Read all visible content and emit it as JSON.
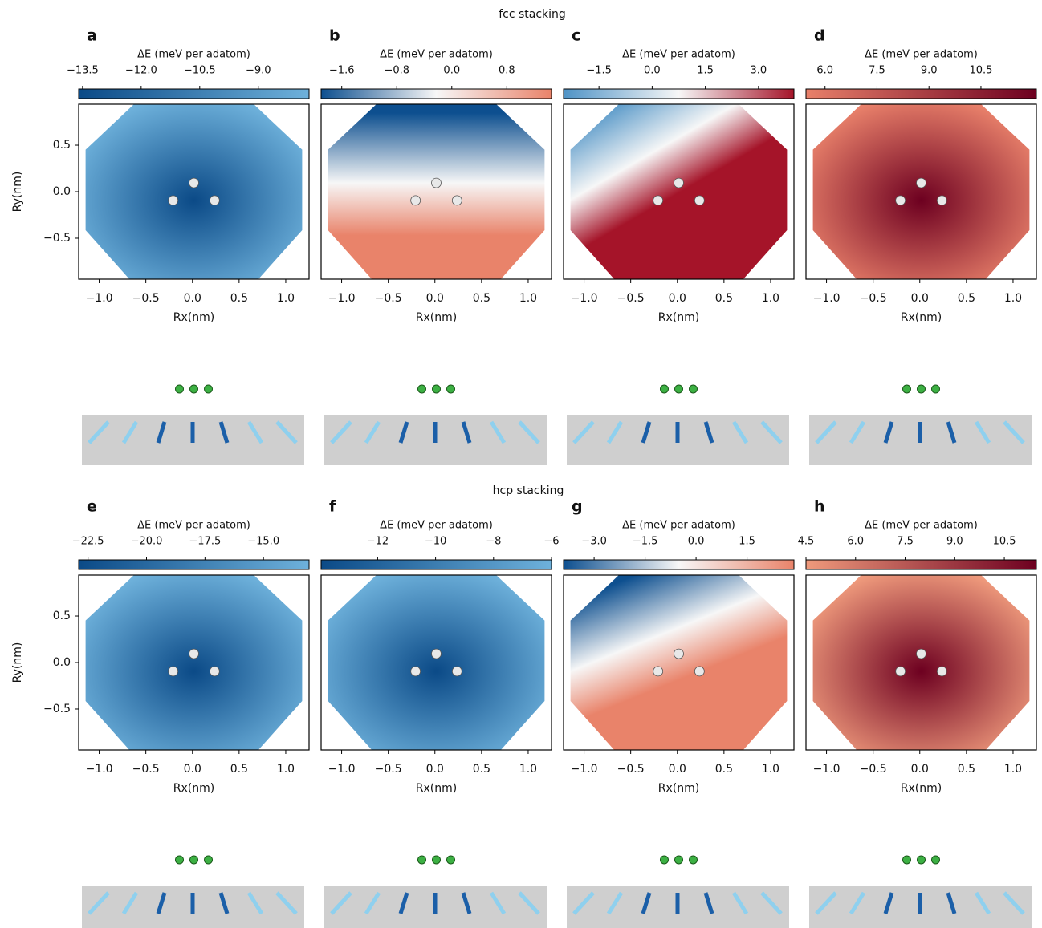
{
  "section_titles": [
    "fcc stacking",
    "hcp stacking"
  ],
  "chart_data": [
    {
      "type": "heatmap",
      "label": "a",
      "colorbar_label": "ΔE (meV per adatom)",
      "clim": [
        -13.6,
        -7.7
      ],
      "colors": [
        "#0b4a87",
        "#6eb1db"
      ],
      "cticks": [
        {
          "value": -13.5,
          "label": "−13.5"
        },
        {
          "value": -12.0,
          "label": "−12.0"
        },
        {
          "value": -10.5,
          "label": "−10.5"
        },
        {
          "value": -9.0,
          "label": "−9.0"
        }
      ],
      "xlabel": "Rx(nm)",
      "ylabel": "Ry(nm)",
      "xlim": [
        -1.22,
        1.25
      ],
      "ylim": [
        -0.94,
        0.94
      ],
      "xticks": [
        {
          "value": -1,
          "label": "−1.0"
        },
        {
          "value": -0.5,
          "label": "−0.5"
        },
        {
          "value": 0,
          "label": "0.0"
        },
        0.5,
        {
          "value": 1,
          "label": "1.0"
        }
      ],
      "yticks": [
        0.5,
        {
          "value": 0,
          "label": "0.0"
        },
        {
          "value": -0.5,
          "label": "−0.5"
        }
      ]
    },
    {
      "type": "heatmap",
      "label": "b",
      "colorbar_label": "ΔE (meV per adatom)",
      "clim": [
        -1.9,
        1.45
      ],
      "colors": [
        "#0d4f8f",
        "#f7f7f7",
        "#e9836a"
      ],
      "cticks": [
        {
          "value": -1.6,
          "label": "−1.6"
        },
        {
          "value": -0.8,
          "label": "−0.8"
        },
        {
          "value": 0,
          "label": "0.0"
        },
        0.8
      ],
      "xlabel": "Rx(nm)",
      "xlim": [
        -1.22,
        1.25
      ],
      "ylim": [
        -0.94,
        0.94
      ],
      "xticks": [
        {
          "value": -1,
          "label": "−1.0"
        },
        {
          "value": -0.5,
          "label": "−0.5"
        },
        {
          "value": 0,
          "label": "0.0"
        },
        0.5,
        {
          "value": 1,
          "label": "1.0"
        }
      ]
    },
    {
      "type": "heatmap",
      "label": "c",
      "colorbar_label": "ΔE (meV per adatom)",
      "clim": [
        -2.5,
        4.0
      ],
      "colors": [
        "#4f93c6",
        "#f7f7f7",
        "#a51429"
      ],
      "cticks": [
        {
          "value": -1.5,
          "label": "−1.5"
        },
        {
          "value": 0,
          "label": "0.0"
        },
        1.5,
        {
          "value": 3,
          "label": "3.0"
        }
      ],
      "xlabel": "Rx(nm)",
      "xlim": [
        -1.22,
        1.25
      ],
      "ylim": [
        -0.94,
        0.94
      ],
      "xticks": [
        {
          "value": -1,
          "label": "−1.0"
        },
        {
          "value": -0.5,
          "label": "−0.5"
        },
        {
          "value": 0,
          "label": "0.0"
        },
        0.5,
        {
          "value": 1,
          "label": "1.0"
        }
      ]
    },
    {
      "type": "heatmap",
      "label": "d",
      "colorbar_label": "ΔE (meV per adatom)",
      "clim": [
        5.45,
        12.1
      ],
      "colors": [
        "#e8806a",
        "#6d0020"
      ],
      "cticks": [
        {
          "value": 6,
          "label": "6.0"
        },
        7.5,
        {
          "value": 9,
          "label": "9.0"
        },
        10.5
      ],
      "xlabel": "Rx(nm)",
      "xlim": [
        -1.22,
        1.25
      ],
      "ylim": [
        -0.94,
        0.94
      ],
      "xticks": [
        {
          "value": -1,
          "label": "−1.0"
        },
        {
          "value": -0.5,
          "label": "−0.5"
        },
        {
          "value": 0,
          "label": "0.0"
        },
        0.5,
        {
          "value": 1,
          "label": "1.0"
        }
      ]
    },
    {
      "type": "heatmap",
      "label": "e",
      "colorbar_label": "ΔE (meV per adatom)",
      "clim": [
        -22.9,
        -13.05
      ],
      "colors": [
        "#0b4a87",
        "#6eb1db"
      ],
      "cticks": [
        {
          "value": -22.5,
          "label": "−22.5"
        },
        {
          "value": -20,
          "label": "−20.0"
        },
        {
          "value": -17.5,
          "label": "−17.5"
        },
        {
          "value": -15,
          "label": "−15.0"
        }
      ],
      "xlabel": "Rx(nm)",
      "ylabel": "Ry(nm)",
      "xlim": [
        -1.22,
        1.25
      ],
      "ylim": [
        -0.94,
        0.94
      ],
      "xticks": [
        {
          "value": -1,
          "label": "−1.0"
        },
        {
          "value": -0.5,
          "label": "−0.5"
        },
        {
          "value": 0,
          "label": "0.0"
        },
        0.5,
        {
          "value": 1,
          "label": "1.0"
        }
      ],
      "yticks": [
        0.5,
        {
          "value": 0,
          "label": "0.0"
        },
        {
          "value": -0.5,
          "label": "−0.5"
        }
      ]
    },
    {
      "type": "heatmap",
      "label": "f",
      "colorbar_label": "ΔE (meV per adatom)",
      "clim": [
        -13.95,
        -6
      ],
      "colors": [
        "#0b4a87",
        "#6eb1db"
      ],
      "cticks": [
        {
          "value": -12,
          "label": "−12"
        },
        {
          "value": -10,
          "label": "−10"
        },
        {
          "value": -8,
          "label": "−8"
        },
        {
          "value": -6,
          "label": "−6"
        }
      ],
      "xlabel": "Rx(nm)",
      "xlim": [
        -1.22,
        1.25
      ],
      "ylim": [
        -0.94,
        0.94
      ],
      "xticks": [
        {
          "value": -1,
          "label": "−1.0"
        },
        {
          "value": -0.5,
          "label": "−0.5"
        },
        {
          "value": 0,
          "label": "0.0"
        },
        0.5,
        {
          "value": 1,
          "label": "1.0"
        }
      ]
    },
    {
      "type": "heatmap",
      "label": "g",
      "colorbar_label": "ΔE (meV per adatom)",
      "clim": [
        -3.9,
        2.88
      ],
      "colors": [
        "#0d4f8f",
        "#f7f7f7",
        "#e9836a"
      ],
      "cticks": [
        {
          "value": -3,
          "label": "−3.0"
        },
        {
          "value": -1.5,
          "label": "−1.5"
        },
        {
          "value": 0,
          "label": "0.0"
        },
        1.5
      ],
      "xlabel": "Rx(nm)",
      "xlim": [
        -1.22,
        1.25
      ],
      "ylim": [
        -0.94,
        0.94
      ],
      "xticks": [
        {
          "value": -1,
          "label": "−1.0"
        },
        {
          "value": -0.5,
          "label": "−0.5"
        },
        {
          "value": 0,
          "label": "0.0"
        },
        0.5,
        {
          "value": 1,
          "label": "1.0"
        }
      ]
    },
    {
      "type": "heatmap",
      "label": "h",
      "colorbar_label": "ΔE (meV per adatom)",
      "clim": [
        4.5,
        11.47
      ],
      "colors": [
        "#ef9a7c",
        "#6d0020"
      ],
      "cticks": [
        4.5,
        {
          "value": 6,
          "label": "6.0"
        },
        7.5,
        {
          "value": 9,
          "label": "9.0"
        },
        10.5
      ],
      "xlabel": "Rx(nm)",
      "xlim": [
        -1.22,
        1.25
      ],
      "ylim": [
        -0.94,
        0.94
      ],
      "xticks": [
        {
          "value": -1,
          "label": "−1.0"
        },
        {
          "value": -0.5,
          "label": "−0.5"
        },
        {
          "value": 0,
          "label": "0.0"
        },
        0.5,
        {
          "value": 1,
          "label": "1.0"
        }
      ]
    }
  ]
}
